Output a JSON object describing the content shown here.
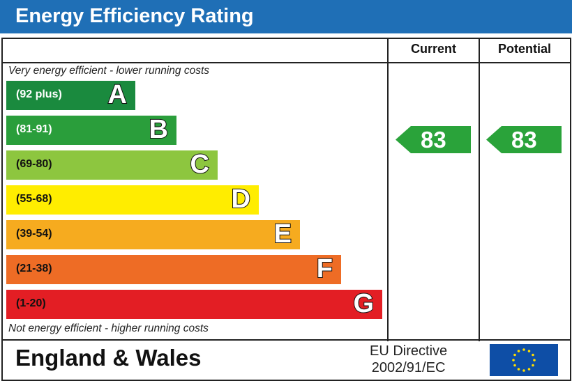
{
  "title": "Energy Efficiency Rating",
  "columns": {
    "current": "Current",
    "potential": "Potential"
  },
  "notes": {
    "top": "Very energy efficient - lower running costs",
    "bottom": "Not energy efficient - higher running costs"
  },
  "footer": {
    "country": "England & Wales",
    "directive_line1": "EU Directive",
    "directive_line2": "2002/91/EC"
  },
  "chart_data": {
    "type": "bar",
    "bands": [
      {
        "range": "(92 plus)",
        "letter": "A",
        "color": "#1a8a3e",
        "text_color": "#fff"
      },
      {
        "range": "(81-91)",
        "letter": "B",
        "color": "#2a9e3b",
        "text_color": "#fff"
      },
      {
        "range": "(69-80)",
        "letter": "C",
        "color": "#8dc63f",
        "text_color": "#111"
      },
      {
        "range": "(55-68)",
        "letter": "D",
        "color": "#ffed00",
        "text_color": "#111"
      },
      {
        "range": "(39-54)",
        "letter": "E",
        "color": "#f6ab1f",
        "text_color": "#111"
      },
      {
        "range": "(21-38)",
        "letter": "F",
        "color": "#ee6c25",
        "text_color": "#111"
      },
      {
        "range": "(1-20)",
        "letter": "G",
        "color": "#e31e24",
        "text_color": "#111"
      }
    ],
    "current": {
      "value": "83",
      "band": "B",
      "color": "#2aa33a"
    },
    "potential": {
      "value": "83",
      "band": "B",
      "color": "#2aa33a"
    }
  }
}
